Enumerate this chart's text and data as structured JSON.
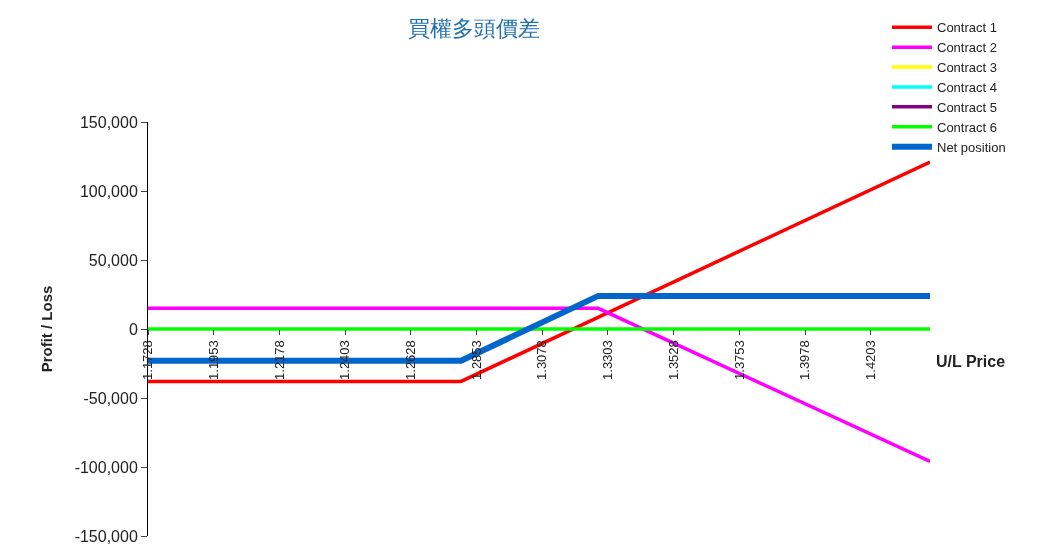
{
  "chart_data": {
    "type": "line",
    "title": "買權多頭價差",
    "xlabel": "U/L Price",
    "ylabel": "Profit / Loss",
    "xlim": [
      1.1728,
      1.4406
    ],
    "xticks": [
      {
        "value": 1.1728,
        "label": "1.1728"
      },
      {
        "value": 1.1953,
        "label": "1.1953"
      },
      {
        "value": 1.2178,
        "label": "1.2178"
      },
      {
        "value": 1.2403,
        "label": "1.2403"
      },
      {
        "value": 1.2628,
        "label": "1.2628"
      },
      {
        "value": 1.2853,
        "label": "1.2853"
      },
      {
        "value": 1.3078,
        "label": "1.3078"
      },
      {
        "value": 1.3303,
        "label": "1.3303"
      },
      {
        "value": 1.3528,
        "label": "1.3528"
      },
      {
        "value": 1.3753,
        "label": "1.3753"
      },
      {
        "value": 1.3978,
        "label": "1.3978"
      },
      {
        "value": 1.4203,
        "label": "1.4203"
      }
    ],
    "ylim": [
      -150000,
      150000
    ],
    "yticks": [
      {
        "value": -150000,
        "label": "-150,000"
      },
      {
        "value": -100000,
        "label": "-100,000"
      },
      {
        "value": -50000,
        "label": "-50,000"
      },
      {
        "value": 0,
        "label": "0"
      },
      {
        "value": 50000,
        "label": "50,000"
      },
      {
        "value": 100000,
        "label": "100,000"
      },
      {
        "value": 150000,
        "label": "150,000"
      }
    ],
    "legend": "top right",
    "marker": "none",
    "line_style": "solid",
    "series": [
      {
        "name": "Contract 1",
        "color": "#ff0000",
        "x": [
          1.1728,
          1.28,
          1.4406
        ],
        "values": [
          -38000,
          -38000,
          121000
        ]
      },
      {
        "name": "Contract 2",
        "color": "#ff00ff",
        "x": [
          1.1728,
          1.327,
          1.4406
        ],
        "values": [
          15000,
          15000,
          -96000
        ]
      },
      {
        "name": "Contract 3",
        "color": "#ffff00",
        "values": [
          null
        ]
      },
      {
        "name": "Contract 4",
        "color": "#00ffff",
        "values": [
          null
        ]
      },
      {
        "name": "Contract 5",
        "color": "#800080",
        "values": [
          null
        ]
      },
      {
        "name": "Contract 6",
        "color": "#00ff00",
        "x": [
          1.1728,
          1.4406
        ],
        "values": [
          0,
          0
        ]
      },
      {
        "name": "Net position",
        "color": "#0066cc",
        "x": [
          1.1728,
          1.28,
          1.327,
          1.4406
        ],
        "values": [
          -23000,
          -23000,
          24000,
          24000
        ]
      }
    ]
  }
}
